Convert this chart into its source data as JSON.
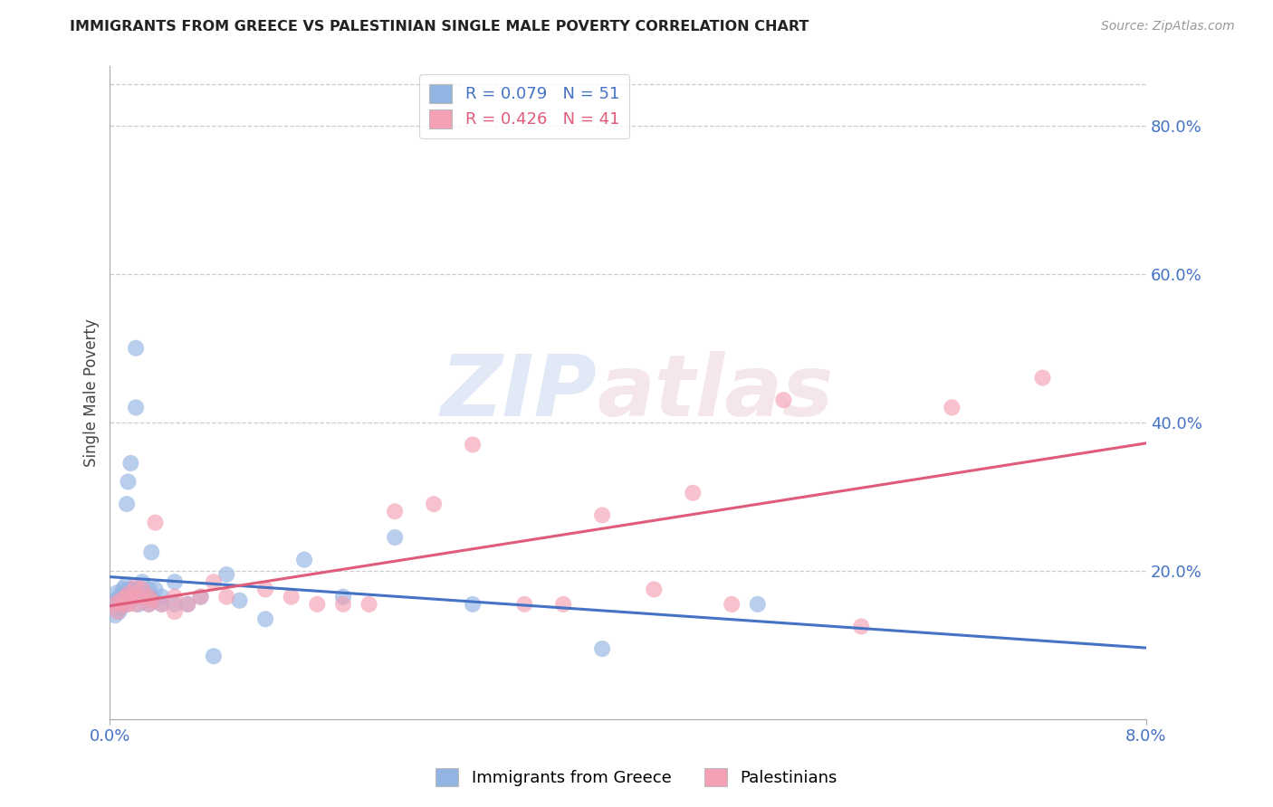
{
  "title": "IMMIGRANTS FROM GREECE VS PALESTINIAN SINGLE MALE POVERTY CORRELATION CHART",
  "source": "Source: ZipAtlas.com",
  "ylabel": "Single Male Poverty",
  "legend_1_label": "R = 0.079   N = 51",
  "legend_2_label": "R = 0.426   N = 41",
  "legend_color_1": "#92b4e3",
  "legend_color_2": "#f4a0b5",
  "trendline_color_1": "#4472c4",
  "trendline_color_2": "#e05c7a",
  "scatter_color_1": "#92b4e3",
  "scatter_color_2": "#f4a0b5",
  "title_color": "#222222",
  "axis_label_color": "#4472c4",
  "background_color": "#ffffff",
  "watermark_text": "ZIPatlas",
  "xlim": [
    0,
    0.08
  ],
  "ylim": [
    0,
    0.88
  ],
  "ytick_vals": [
    0.2,
    0.4,
    0.6,
    0.8
  ],
  "ytick_labels": [
    "20.0%",
    "40.0%",
    "60.0%",
    "80.0%"
  ],
  "greece_x": [
    0.0003,
    0.0004,
    0.0005,
    0.0005,
    0.0006,
    0.0007,
    0.0007,
    0.0008,
    0.0009,
    0.001,
    0.001,
    0.0011,
    0.0012,
    0.0012,
    0.0013,
    0.0013,
    0.0014,
    0.0015,
    0.0015,
    0.0016,
    0.0017,
    0.0018,
    0.002,
    0.002,
    0.0021,
    0.0022,
    0.0023,
    0.0024,
    0.0025,
    0.003,
    0.003,
    0.0031,
    0.0032,
    0.0033,
    0.0035,
    0.004,
    0.004,
    0.005,
    0.005,
    0.006,
    0.007,
    0.008,
    0.009,
    0.01,
    0.012,
    0.015,
    0.018,
    0.022,
    0.028,
    0.038,
    0.05
  ],
  "greece_y": [
    0.155,
    0.14,
    0.16,
    0.17,
    0.155,
    0.145,
    0.165,
    0.15,
    0.16,
    0.155,
    0.175,
    0.16,
    0.165,
    0.18,
    0.155,
    0.29,
    0.32,
    0.165,
    0.175,
    0.345,
    0.175,
    0.165,
    0.42,
    0.5,
    0.165,
    0.155,
    0.175,
    0.165,
    0.185,
    0.175,
    0.155,
    0.165,
    0.225,
    0.16,
    0.175,
    0.155,
    0.165,
    0.155,
    0.185,
    0.155,
    0.165,
    0.085,
    0.195,
    0.16,
    0.135,
    0.215,
    0.165,
    0.245,
    0.155,
    0.095,
    0.155
  ],
  "palestine_x": [
    0.0004,
    0.0006,
    0.0008,
    0.001,
    0.0012,
    0.0014,
    0.0015,
    0.0017,
    0.002,
    0.002,
    0.0022,
    0.0025,
    0.003,
    0.003,
    0.0032,
    0.0035,
    0.004,
    0.005,
    0.005,
    0.006,
    0.007,
    0.008,
    0.009,
    0.012,
    0.014,
    0.016,
    0.018,
    0.02,
    0.022,
    0.025,
    0.028,
    0.032,
    0.035,
    0.038,
    0.042,
    0.045,
    0.048,
    0.052,
    0.058,
    0.065,
    0.072
  ],
  "palestine_y": [
    0.155,
    0.145,
    0.16,
    0.155,
    0.165,
    0.155,
    0.17,
    0.165,
    0.155,
    0.18,
    0.165,
    0.175,
    0.155,
    0.165,
    0.16,
    0.265,
    0.155,
    0.145,
    0.165,
    0.155,
    0.165,
    0.185,
    0.165,
    0.175,
    0.165,
    0.155,
    0.155,
    0.155,
    0.28,
    0.29,
    0.37,
    0.155,
    0.155,
    0.275,
    0.175,
    0.305,
    0.155,
    0.43,
    0.125,
    0.42,
    0.46
  ]
}
